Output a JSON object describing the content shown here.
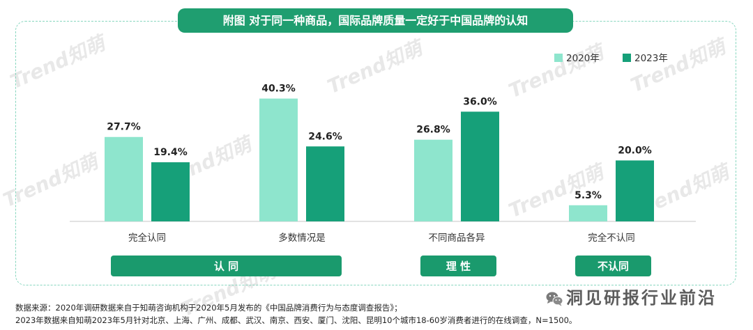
{
  "chart_data": {
    "type": "bar",
    "title": "附图 对于同一种商品，国际品牌质量一定好于中国品牌的认知",
    "xlabel": "",
    "ylabel": "",
    "categories": [
      "完全认同",
      "多数情况是",
      "不同商品各异",
      "完全不认同"
    ],
    "series": [
      {
        "name": "2020年",
        "values": [
          27.7,
          40.3,
          26.8,
          5.3
        ],
        "data_labels": [
          "27.7%",
          "40.3%",
          "26.8%",
          "5.3%"
        ],
        "color": "#8ee5cd"
      },
      {
        "name": "2023年",
        "values": [
          19.4,
          24.6,
          36.0,
          20.0
        ],
        "data_labels": [
          "19.4%",
          "24.6%",
          "36.0%",
          "20.0%"
        ],
        "color": "#16a079"
      }
    ],
    "groups": [
      {
        "label": "认 同",
        "span": 2
      },
      {
        "label": "理 性",
        "span": 1
      },
      {
        "label": "不认同",
        "span": 1
      }
    ],
    "ylim": [
      0,
      45
    ],
    "grid": false,
    "legend": "top-right"
  },
  "source": {
    "lines": [
      "数据来源：2020年调研数据来自于知萌咨询机构于2020年5月发布的《中国品牌消费行为与态度调查报告》；",
      "2023年数据来自知萌2023年5月针对北京、上海、广州、成都、武汉、南京、西安、厦门、沈阳、昆明10个城市18-60岁消费者进行的在线调查，N=1500。"
    ]
  },
  "watermarks": {
    "brand": "Trend知萌",
    "account": "洞见研报行业前沿",
    "account_icon": "wechat-icon"
  },
  "colors": {
    "title_bg": "#1f9e70",
    "group_bg": "#1a9a6d",
    "frame_border": "#86d6be",
    "axis": "#c4c4c4"
  }
}
